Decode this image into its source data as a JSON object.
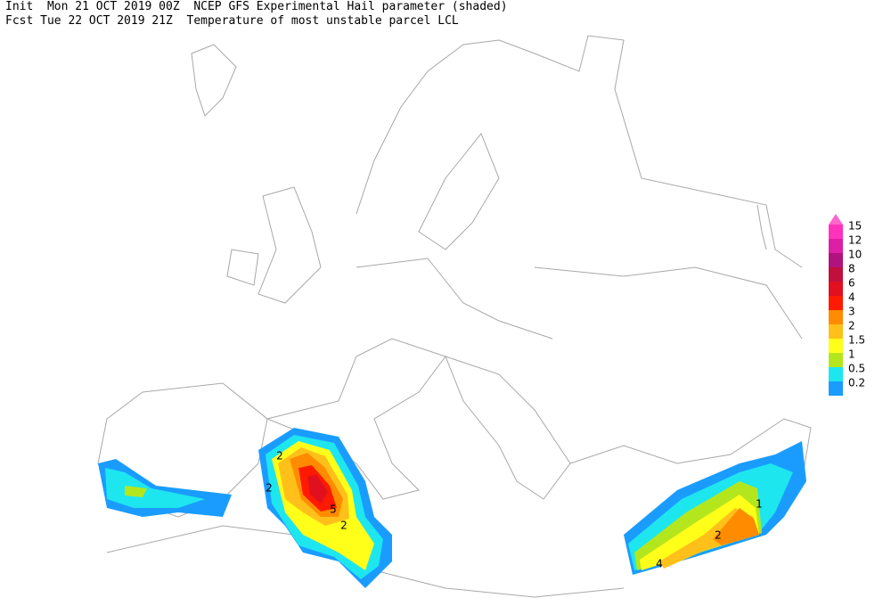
{
  "header": {
    "line1": "Init  Mon 21 OCT 2019 00Z  NCEP GFS Experimental Hail parameter (shaded)",
    "line2": "Fcst Tue 22 OCT 2019 21Z  Temperature of most unstable parcel LCL"
  },
  "legend": {
    "items": [
      {
        "label": "15",
        "color": "#ff33bb"
      },
      {
        "label": "12",
        "color": "#dd1fa6"
      },
      {
        "label": "10",
        "color": "#b0137e"
      },
      {
        "label": "8",
        "color": "#c10f3e"
      },
      {
        "label": "6",
        "color": "#e0101e"
      },
      {
        "label": "4",
        "color": "#ff1a00"
      },
      {
        "label": "3",
        "color": "#ff8c00"
      },
      {
        "label": "2",
        "color": "#ffc01a"
      },
      {
        "label": "1.5",
        "color": "#ffff1a"
      },
      {
        "label": "1",
        "color": "#b4e61e"
      },
      {
        "label": "0.5",
        "color": "#1ee6ee"
      },
      {
        "label": "0.2",
        "color": "#1a9cff"
      }
    ],
    "arrow_color": "#ff66cc"
  },
  "contour_labels": [
    "2",
    "5",
    "2",
    "2",
    "1",
    "2",
    "4"
  ]
}
